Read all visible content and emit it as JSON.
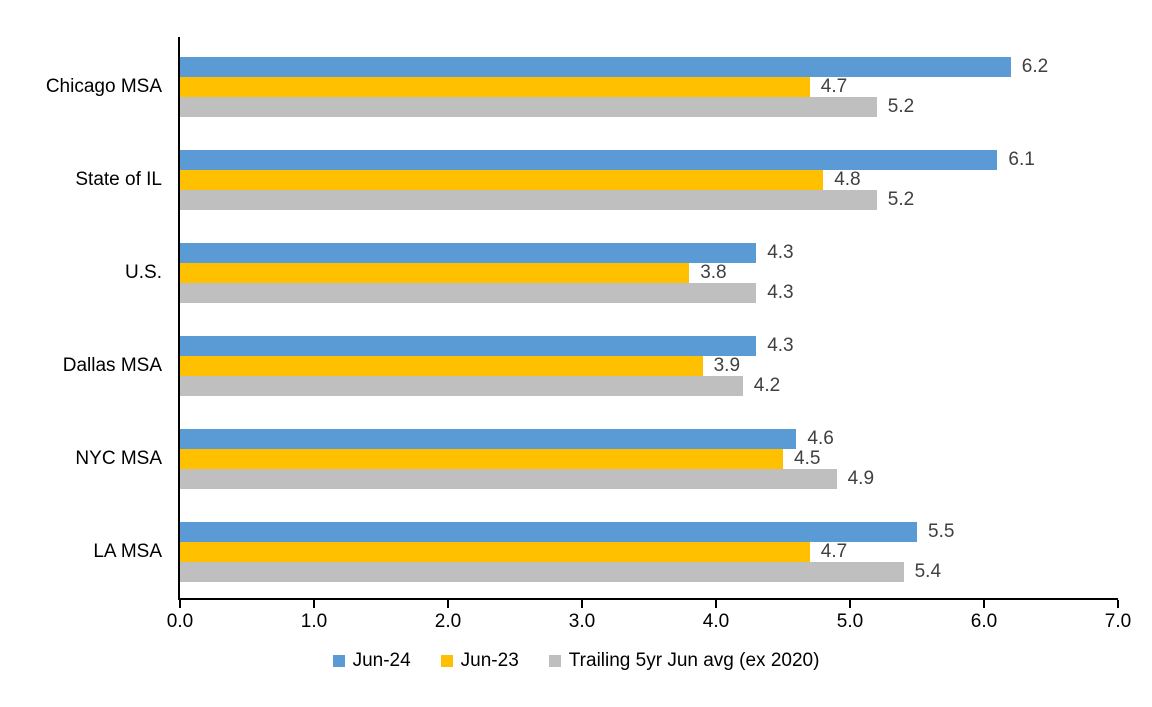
{
  "chart_data": {
    "type": "bar",
    "orientation": "horizontal",
    "title": "",
    "xlabel": "",
    "ylabel": "",
    "categories": [
      "Chicago MSA",
      "State of IL",
      "U.S.",
      "Dallas MSA",
      "NYC MSA",
      "LA MSA"
    ],
    "series": [
      {
        "name": "Jun-24",
        "color": "#5B9BD5",
        "values": [
          6.2,
          6.1,
          4.3,
          4.3,
          4.6,
          5.5
        ]
      },
      {
        "name": "Jun-23",
        "color": "#FFC000",
        "values": [
          4.7,
          4.8,
          3.8,
          3.9,
          4.5,
          4.7
        ]
      },
      {
        "name": "Trailing 5yr Jun avg (ex 2020)",
        "color": "#BFBFBF",
        "values": [
          5.2,
          5.2,
          4.3,
          4.2,
          4.9,
          5.4
        ]
      }
    ],
    "xlim": [
      0.0,
      7.0
    ],
    "x_ticks": [
      "0.0",
      "1.0",
      "2.0",
      "3.0",
      "4.0",
      "5.0",
      "6.0",
      "7.0"
    ],
    "grid": false,
    "data_labels": true,
    "data_label_color": "#404040",
    "axis_color": "#000000",
    "background_color": "#FFFFFF",
    "legend_position": "bottom"
  }
}
